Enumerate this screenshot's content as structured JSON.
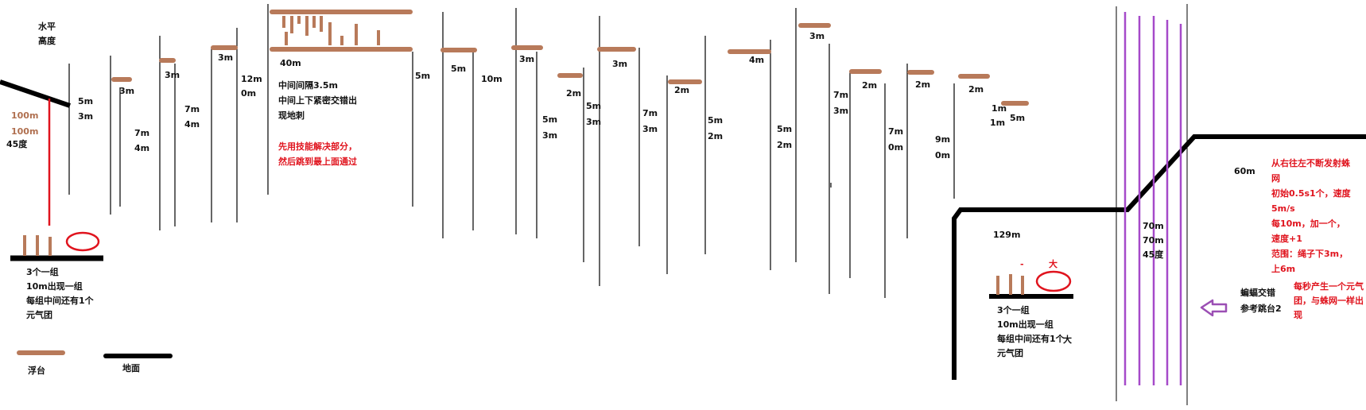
{
  "legend": {
    "horizontal": "水平",
    "height": "高度",
    "platform": "浮台",
    "ground": "地面"
  },
  "start": {
    "h": "100m",
    "v": "100m",
    "angle": "45度",
    "slope_a": "5m",
    "slope_b": "3m"
  },
  "group_note_left": [
    "3个一组",
    "10m出现一组",
    "每组中间还有1个",
    "元气团"
  ],
  "group_note_right": [
    "3个一组",
    "10m出现一组",
    "每组中间还有1个",
    "元气团"
  ],
  "big_mark": "大",
  "dash_mark": "-",
  "sizes": [
    "3m",
    "3m",
    "3m",
    "40m",
    "5m",
    "3m",
    "2m",
    "3m",
    "2m",
    "4m",
    "3m",
    "2m",
    "2m",
    "2m",
    "1m",
    "5m"
  ],
  "gaps": [
    {
      "a": "7m",
      "b": "4m"
    },
    {
      "a": "7m",
      "b": "4m"
    },
    {
      "a": "12m",
      "b": "0m"
    },
    {
      "a": "5m",
      "b": ""
    },
    {
      "a": "10m",
      "b": ""
    },
    {
      "a": "5m",
      "b": "3m"
    },
    {
      "a": "5m",
      "b": "3m"
    },
    {
      "a": "7m",
      "b": "3m"
    },
    {
      "a": "5m",
      "b": "2m"
    },
    {
      "a": "5m",
      "b": "2m"
    },
    {
      "a": "7m",
      "b": "3m"
    },
    {
      "a": "7m",
      "b": "0m"
    },
    {
      "a": "9m",
      "b": "0m"
    },
    {
      "a": "1m",
      "b": "1m"
    }
  ],
  "spike_note": [
    "中间间隔3.5m",
    "中间上下紧密交错出",
    "现地刺"
  ],
  "skill_note": [
    "先用技能解决部分，",
    "然后跳到最上面通过"
  ],
  "ground_len": "129m",
  "web_zone": {
    "a": "70m",
    "b": "70m",
    "angle": "45度"
  },
  "far_len": "60m",
  "web_note": [
    "从右往左不断发射蛛",
    "网",
    "初始0.5s1个，速度",
    "5m/s",
    "每10m，加一个，",
    "速度+1",
    "范围：绳子下3m，",
    "上6m"
  ],
  "bat_note": [
    "蝙蝠交错",
    "参考跳台2"
  ],
  "orb_note": [
    "每秒产生一个元气",
    "团，与蛛网一样出",
    "现"
  ],
  "colors": {
    "platform": "#b87a5a",
    "ground": "#000000",
    "orb": "#e0141e",
    "web": "#a64ac9",
    "arrow": "#9b4fb4",
    "text_red": "#e0141e"
  }
}
